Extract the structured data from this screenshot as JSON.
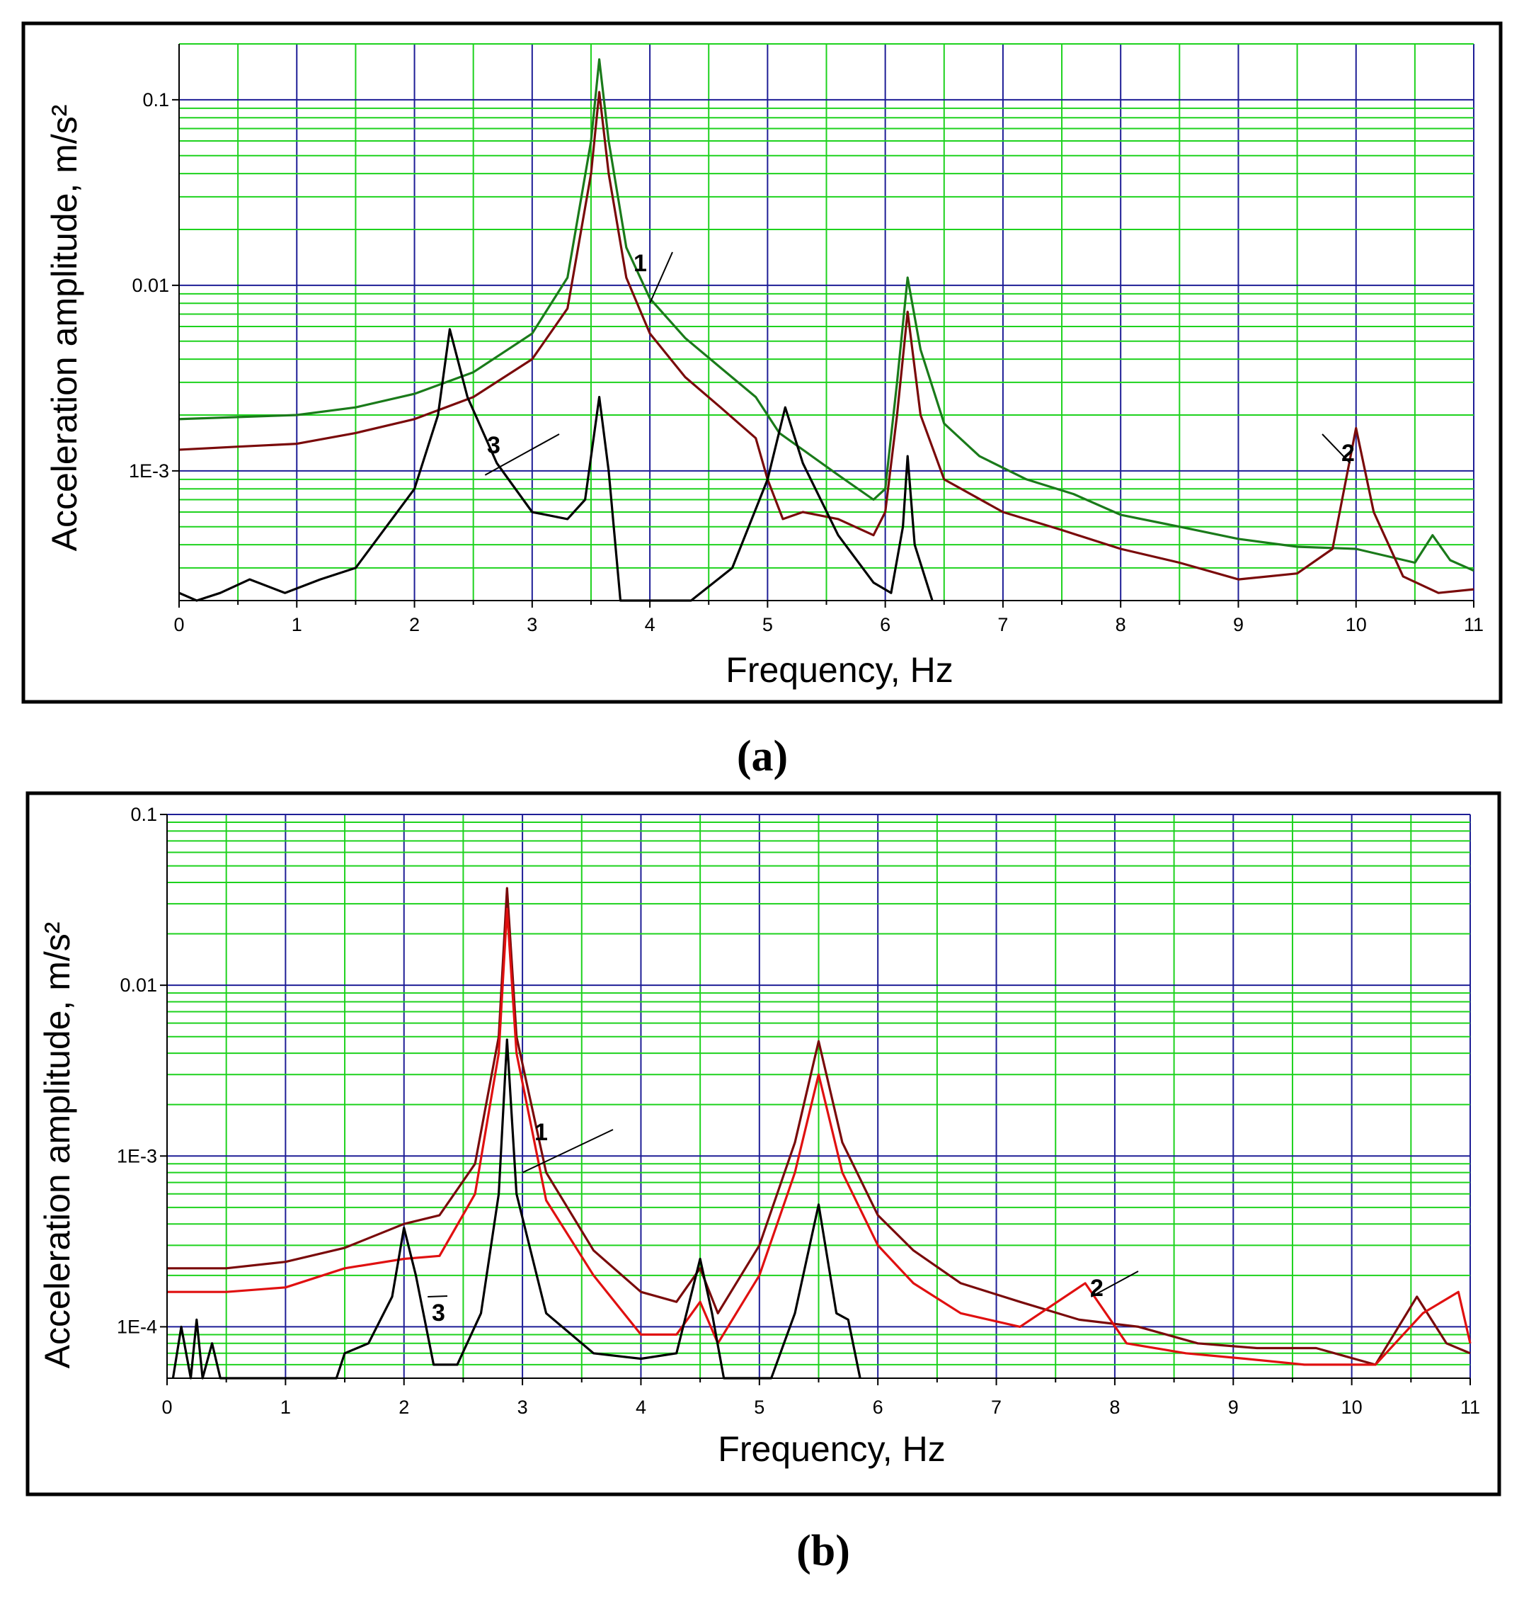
{
  "colors": {
    "grid_major": "#1e1e96",
    "grid_minor": "#1ed21e",
    "series_1_a": "#1a7a1a",
    "series_2_a": "#7a0a0a",
    "series_3": "#000000",
    "series_1_b": "#7a0a0a",
    "series_2_b": "#e01010"
  },
  "chart_data": [
    {
      "id": "a",
      "type": "line",
      "panel_label": "(a)",
      "xlabel": "Frequency, Hz",
      "ylabel": "Acceleration amplitude, m/s²",
      "xlim": [
        0,
        11
      ],
      "ylim": [
        0.0002,
        0.2
      ],
      "yscale": "log",
      "xticks": [
        0,
        1,
        2,
        3,
        4,
        5,
        6,
        7,
        8,
        9,
        10,
        11
      ],
      "xtick_labels": [
        "0",
        "1",
        "2",
        "3",
        "4",
        "5",
        "6",
        "7",
        "8",
        "9",
        "10",
        "11"
      ],
      "yticks": [
        0.001,
        0.01,
        0.1
      ],
      "ytick_labels": [
        "1E-3",
        "0.01",
        "0.1"
      ],
      "series": [
        {
          "name": "1",
          "color": "#1a7a1a",
          "points": [
            [
              0,
              0.0019
            ],
            [
              0.5,
              0.00195
            ],
            [
              1,
              0.002
            ],
            [
              1.5,
              0.0022
            ],
            [
              2,
              0.0026
            ],
            [
              2.5,
              0.0034
            ],
            [
              3,
              0.0055
            ],
            [
              3.3,
              0.011
            ],
            [
              3.5,
              0.06
            ],
            [
              3.57,
              0.165
            ],
            [
              3.65,
              0.06
            ],
            [
              3.8,
              0.016
            ],
            [
              4,
              0.0085
            ],
            [
              4.3,
              0.0052
            ],
            [
              4.6,
              0.0036
            ],
            [
              4.9,
              0.0025
            ],
            [
              5.1,
              0.0016
            ],
            [
              5.3,
              0.0013
            ],
            [
              5.6,
              0.00095
            ],
            [
              5.9,
              0.0007
            ],
            [
              6.0,
              0.0008
            ],
            [
              6.1,
              0.003
            ],
            [
              6.19,
              0.011
            ],
            [
              6.3,
              0.0045
            ],
            [
              6.5,
              0.0018
            ],
            [
              6.8,
              0.0012
            ],
            [
              7.2,
              0.0009
            ],
            [
              7.6,
              0.00075
            ],
            [
              8,
              0.00058
            ],
            [
              8.5,
              0.0005
            ],
            [
              9,
              0.00043
            ],
            [
              9.5,
              0.00039
            ],
            [
              10,
              0.00038
            ],
            [
              10.5,
              0.00032
            ],
            [
              10.65,
              0.00045
            ],
            [
              10.8,
              0.00033
            ],
            [
              11,
              0.00029
            ]
          ]
        },
        {
          "name": "2",
          "color": "#7a0a0a",
          "points": [
            [
              0,
              0.0013
            ],
            [
              0.5,
              0.00135
            ],
            [
              1,
              0.0014
            ],
            [
              1.5,
              0.0016
            ],
            [
              2,
              0.0019
            ],
            [
              2.5,
              0.0025
            ],
            [
              3,
              0.004
            ],
            [
              3.3,
              0.0075
            ],
            [
              3.5,
              0.04
            ],
            [
              3.57,
              0.11
            ],
            [
              3.65,
              0.04
            ],
            [
              3.8,
              0.011
            ],
            [
              4,
              0.0055
            ],
            [
              4.3,
              0.0032
            ],
            [
              4.6,
              0.0022
            ],
            [
              4.9,
              0.0015
            ],
            [
              5.0,
              0.0009
            ],
            [
              5.13,
              0.00055
            ],
            [
              5.3,
              0.0006
            ],
            [
              5.6,
              0.00055
            ],
            [
              5.9,
              0.00045
            ],
            [
              6.0,
              0.0006
            ],
            [
              6.1,
              0.002
            ],
            [
              6.19,
              0.0072
            ],
            [
              6.3,
              0.002
            ],
            [
              6.5,
              0.0009
            ],
            [
              7,
              0.0006
            ],
            [
              7.5,
              0.00048
            ],
            [
              8,
              0.00038
            ],
            [
              8.5,
              0.00032
            ],
            [
              9,
              0.00026
            ],
            [
              9.5,
              0.00028
            ],
            [
              9.8,
              0.00038
            ],
            [
              10.0,
              0.0017
            ],
            [
              10.15,
              0.0006
            ],
            [
              10.4,
              0.00027
            ],
            [
              10.7,
              0.00022
            ],
            [
              11,
              0.00023
            ]
          ]
        },
        {
          "name": "3",
          "color": "#000000",
          "points": [
            [
              0,
              0.00022
            ],
            [
              0.15,
              0.00018
            ],
            [
              0.35,
              0.00022
            ],
            [
              0.6,
              0.00026
            ],
            [
              0.9,
              0.00022
            ],
            [
              1.2,
              0.00026
            ],
            [
              1.5,
              0.0003
            ],
            [
              2.0,
              0.0008
            ],
            [
              2.2,
              0.002
            ],
            [
              2.3,
              0.0058
            ],
            [
              2.45,
              0.0025
            ],
            [
              2.7,
              0.0011
            ],
            [
              3.0,
              0.0006
            ],
            [
              3.3,
              0.00055
            ],
            [
              3.45,
              0.0007
            ],
            [
              3.57,
              0.0025
            ],
            [
              3.65,
              0.001
            ],
            [
              3.75,
              0.00018
            ],
            [
              4.35,
              0.00018
            ],
            [
              4.7,
              0.0003
            ],
            [
              5.0,
              0.0009
            ],
            [
              5.15,
              0.0022
            ],
            [
              5.3,
              0.0011
            ],
            [
              5.6,
              0.00045
            ],
            [
              5.9,
              0.00025
            ],
            [
              6.05,
              0.00022
            ],
            [
              6.15,
              0.0005
            ],
            [
              6.19,
              0.0012
            ],
            [
              6.25,
              0.0004
            ],
            [
              6.4,
              0.00018
            ]
          ]
        }
      ],
      "annotations": [
        {
          "text": "1",
          "series": "1",
          "target": [
            4.0,
            0.008
          ]
        },
        {
          "text": "3",
          "series": "3",
          "target": [
            2.6,
            0.00095
          ]
        },
        {
          "text": "2",
          "series": "2",
          "target": [
            9.95,
            0.0011
          ]
        }
      ]
    },
    {
      "id": "b",
      "type": "line",
      "panel_label": "(b)",
      "xlabel": "Frequency, Hz",
      "ylabel": "Acceleration amplitude, m/s²",
      "xlim": [
        0,
        11
      ],
      "ylim": [
        5e-05,
        0.1
      ],
      "yscale": "log",
      "xticks": [
        0,
        1,
        2,
        3,
        4,
        5,
        6,
        7,
        8,
        9,
        10,
        11
      ],
      "xtick_labels": [
        "0",
        "1",
        "2",
        "3",
        "4",
        "5",
        "6",
        "7",
        "8",
        "9",
        "10",
        "11"
      ],
      "yticks": [
        0.0001,
        0.001,
        0.01,
        0.1
      ],
      "ytick_labels": [
        "1E-4",
        "1E-3",
        "0.01",
        "0.1"
      ],
      "series": [
        {
          "name": "1",
          "color": "#7a0a0a",
          "points": [
            [
              0,
              0.00022
            ],
            [
              0.5,
              0.00022
            ],
            [
              1,
              0.00024
            ],
            [
              1.5,
              0.00029
            ],
            [
              2,
              0.0004
            ],
            [
              2.3,
              0.00045
            ],
            [
              2.6,
              0.0009
            ],
            [
              2.8,
              0.005
            ],
            [
              2.87,
              0.037
            ],
            [
              2.95,
              0.005
            ],
            [
              3.2,
              0.0008
            ],
            [
              3.6,
              0.00028
            ],
            [
              4.0,
              0.00016
            ],
            [
              4.3,
              0.00014
            ],
            [
              4.5,
              0.00022
            ],
            [
              4.65,
              0.00012
            ],
            [
              5.0,
              0.0003
            ],
            [
              5.3,
              0.0012
            ],
            [
              5.5,
              0.0047
            ],
            [
              5.7,
              0.0012
            ],
            [
              6.0,
              0.00045
            ],
            [
              6.3,
              0.00028
            ],
            [
              6.7,
              0.00018
            ],
            [
              7.2,
              0.00014
            ],
            [
              7.7,
              0.00011
            ],
            [
              8.2,
              0.0001
            ],
            [
              8.7,
              8e-05
            ],
            [
              9.2,
              7.5e-05
            ],
            [
              9.7,
              7.5e-05
            ],
            [
              10.2,
              6e-05
            ],
            [
              10.55,
              0.00015
            ],
            [
              10.8,
              8e-05
            ],
            [
              11,
              7e-05
            ]
          ]
        },
        {
          "name": "2",
          "color": "#e01010",
          "points": [
            [
              0,
              0.00016
            ],
            [
              0.5,
              0.00016
            ],
            [
              1,
              0.00017
            ],
            [
              1.5,
              0.00022
            ],
            [
              2,
              0.00025
            ],
            [
              2.3,
              0.00026
            ],
            [
              2.6,
              0.0006
            ],
            [
              2.8,
              0.004
            ],
            [
              2.87,
              0.028
            ],
            [
              2.95,
              0.004
            ],
            [
              3.2,
              0.00055
            ],
            [
              3.6,
              0.0002
            ],
            [
              4.0,
              9e-05
            ],
            [
              4.3,
              9e-05
            ],
            [
              4.5,
              0.00014
            ],
            [
              4.65,
              8e-05
            ],
            [
              5.0,
              0.0002
            ],
            [
              5.3,
              0.0008
            ],
            [
              5.5,
              0.003
            ],
            [
              5.7,
              0.0008
            ],
            [
              6.0,
              0.0003
            ],
            [
              6.3,
              0.00018
            ],
            [
              6.7,
              0.00012
            ],
            [
              7.2,
              0.0001
            ],
            [
              7.75,
              0.00018
            ],
            [
              8.1,
              8e-05
            ],
            [
              8.6,
              7e-05
            ],
            [
              9.1,
              6.5e-05
            ],
            [
              9.6,
              6e-05
            ],
            [
              10.2,
              6e-05
            ],
            [
              10.6,
              0.00012
            ],
            [
              10.9,
              0.00016
            ],
            [
              11,
              8e-05
            ]
          ]
        },
        {
          "name": "3",
          "color": "#000000",
          "points": [
            [
              0.05,
              5e-05
            ],
            [
              0.12,
              0.0001
            ],
            [
              0.2,
              5e-05
            ],
            [
              0.25,
              0.00011
            ],
            [
              0.3,
              5e-05
            ],
            [
              0.38,
              8e-05
            ],
            [
              0.45,
              5e-05
            ],
            [
              1.43,
              5e-05
            ],
            [
              1.5,
              7e-05
            ],
            [
              1.7,
              8e-05
            ],
            [
              1.9,
              0.00015
            ],
            [
              2.0,
              0.00038
            ],
            [
              2.1,
              0.0002
            ],
            [
              2.25,
              6e-05
            ],
            [
              2.45,
              6e-05
            ],
            [
              2.65,
              0.00012
            ],
            [
              2.8,
              0.0006
            ],
            [
              2.87,
              0.0048
            ],
            [
              2.95,
              0.0006
            ],
            [
              3.2,
              0.00012
            ],
            [
              3.6,
              7e-05
            ],
            [
              4.0,
              6.5e-05
            ],
            [
              4.3,
              7e-05
            ],
            [
              4.5,
              0.00025
            ],
            [
              4.6,
              0.00012
            ],
            [
              4.7,
              5e-05
            ],
            [
              5.1,
              5e-05
            ],
            [
              5.3,
              0.00012
            ],
            [
              5.5,
              0.00052
            ],
            [
              5.65,
              0.00012
            ],
            [
              5.75,
              0.00011
            ],
            [
              5.85,
              5e-05
            ]
          ]
        }
      ],
      "annotations": [
        {
          "text": "1",
          "series": "1",
          "target": [
            3.0,
            0.0008
          ]
        },
        {
          "text": "3",
          "series": "3",
          "target": [
            2.2,
            0.00015
          ]
        },
        {
          "text": "2",
          "series": "2",
          "target": [
            7.8,
            0.00015
          ]
        }
      ]
    }
  ]
}
